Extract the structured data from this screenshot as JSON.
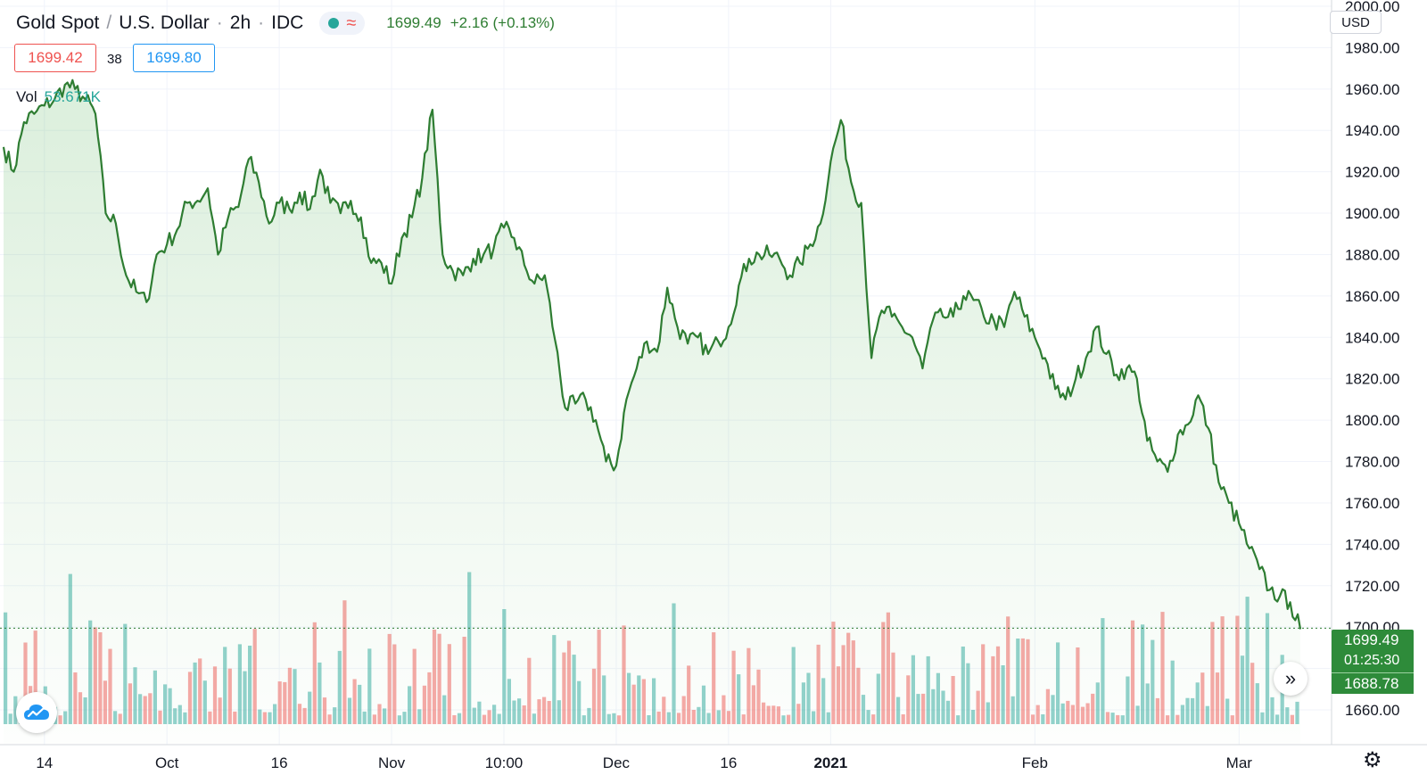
{
  "header": {
    "symbol": "Gold Spot",
    "currency": "U.S. Dollar",
    "interval": "2h",
    "source": "IDC",
    "status_icons": [
      "market-open-dot-icon",
      "delayed-data-wave-icon"
    ],
    "last": "1699.49",
    "change": "+2.16 (+0.13%)"
  },
  "quote": {
    "bid": "1699.42",
    "spread": "38",
    "ask": "1699.80"
  },
  "volume": {
    "label": "Vol",
    "value": "53.671K"
  },
  "axis": {
    "currency_button": "USD"
  },
  "price_tags": {
    "last": "1699.49",
    "countdown": "01:25:30",
    "low": "1688.78"
  },
  "controls": {
    "scroll_icon": "double-chevron-right-icon",
    "settings_icon": "gear-icon",
    "logo_icon": "tradingview-cloud-icon"
  },
  "colors": {
    "line": "#2e7d32",
    "area": "#4caf50",
    "vol_up": "#26a69a",
    "vol_down": "#ef5350",
    "tag": "#2e8b3a"
  },
  "chart_data": {
    "type": "area",
    "ylim": [
      1657,
      2001
    ],
    "y_ticks": [
      "1660.00",
      "1680.00",
      "1700.00",
      "1720.00",
      "1740.00",
      "1760.00",
      "1780.00",
      "1800.00",
      "1820.00",
      "1840.00",
      "1860.00",
      "1880.00",
      "1900.00",
      "1920.00",
      "1940.00",
      "1960.00",
      "1980.00",
      "2000.00"
    ],
    "x_ticks": [
      {
        "label": "14",
        "bold": false,
        "i": 4
      },
      {
        "label": "Oct",
        "bold": false,
        "i": 16
      },
      {
        "label": "16",
        "bold": false,
        "i": 27
      },
      {
        "label": "Nov",
        "bold": false,
        "i": 38
      },
      {
        "label": "10:00",
        "bold": false,
        "i": 49
      },
      {
        "label": "Dec",
        "bold": false,
        "i": 60
      },
      {
        "label": "16",
        "bold": false,
        "i": 71
      },
      {
        "label": "2021",
        "bold": true,
        "i": 81
      },
      {
        "label": "Feb",
        "bold": false,
        "i": 101
      },
      {
        "label": "Mar",
        "bold": false,
        "i": 121
      }
    ],
    "series": [
      {
        "values": [
          1932,
          1920,
          1944,
          1948,
          1952,
          1955,
          1962,
          1960,
          1955,
          1948,
          1900,
          1895,
          1870,
          1862,
          1857,
          1880,
          1885,
          1892,
          1905,
          1906,
          1912,
          1880,
          1898,
          1903,
          1926,
          1915,
          1895,
          1905,
          1902,
          1910,
          1902,
          1921,
          1905,
          1900,
          1906,
          1898,
          1876,
          1876,
          1866,
          1888,
          1898,
          1917,
          1950,
          1880,
          1872,
          1870,
          1878,
          1880,
          1883,
          1893,
          1888,
          1875,
          1866,
          1870,
          1839,
          1806,
          1808,
          1810,
          1800,
          1780,
          1778,
          1810,
          1825,
          1838,
          1833,
          1864,
          1845,
          1837,
          1840,
          1832,
          1838,
          1845,
          1865,
          1878,
          1880,
          1880,
          1878,
          1870,
          1876,
          1885,
          1895,
          1925,
          1945,
          1915,
          1905,
          1830,
          1853,
          1850,
          1845,
          1840,
          1825,
          1848,
          1850,
          1850,
          1860,
          1858,
          1850,
          1848,
          1845,
          1862,
          1850,
          1840,
          1830,
          1815,
          1810,
          1820,
          1830,
          1845,
          1832,
          1822,
          1825,
          1820,
          1790,
          1780,
          1775,
          1793,
          1798,
          1812,
          1796,
          1770,
          1760,
          1750,
          1738,
          1728,
          1718,
          1715,
          1712,
          1699
        ]
      }
    ],
    "volume_bars": {
      "count": 260,
      "range_pct": [
        5,
        100
      ]
    },
    "last_price_line": 1699.49
  }
}
